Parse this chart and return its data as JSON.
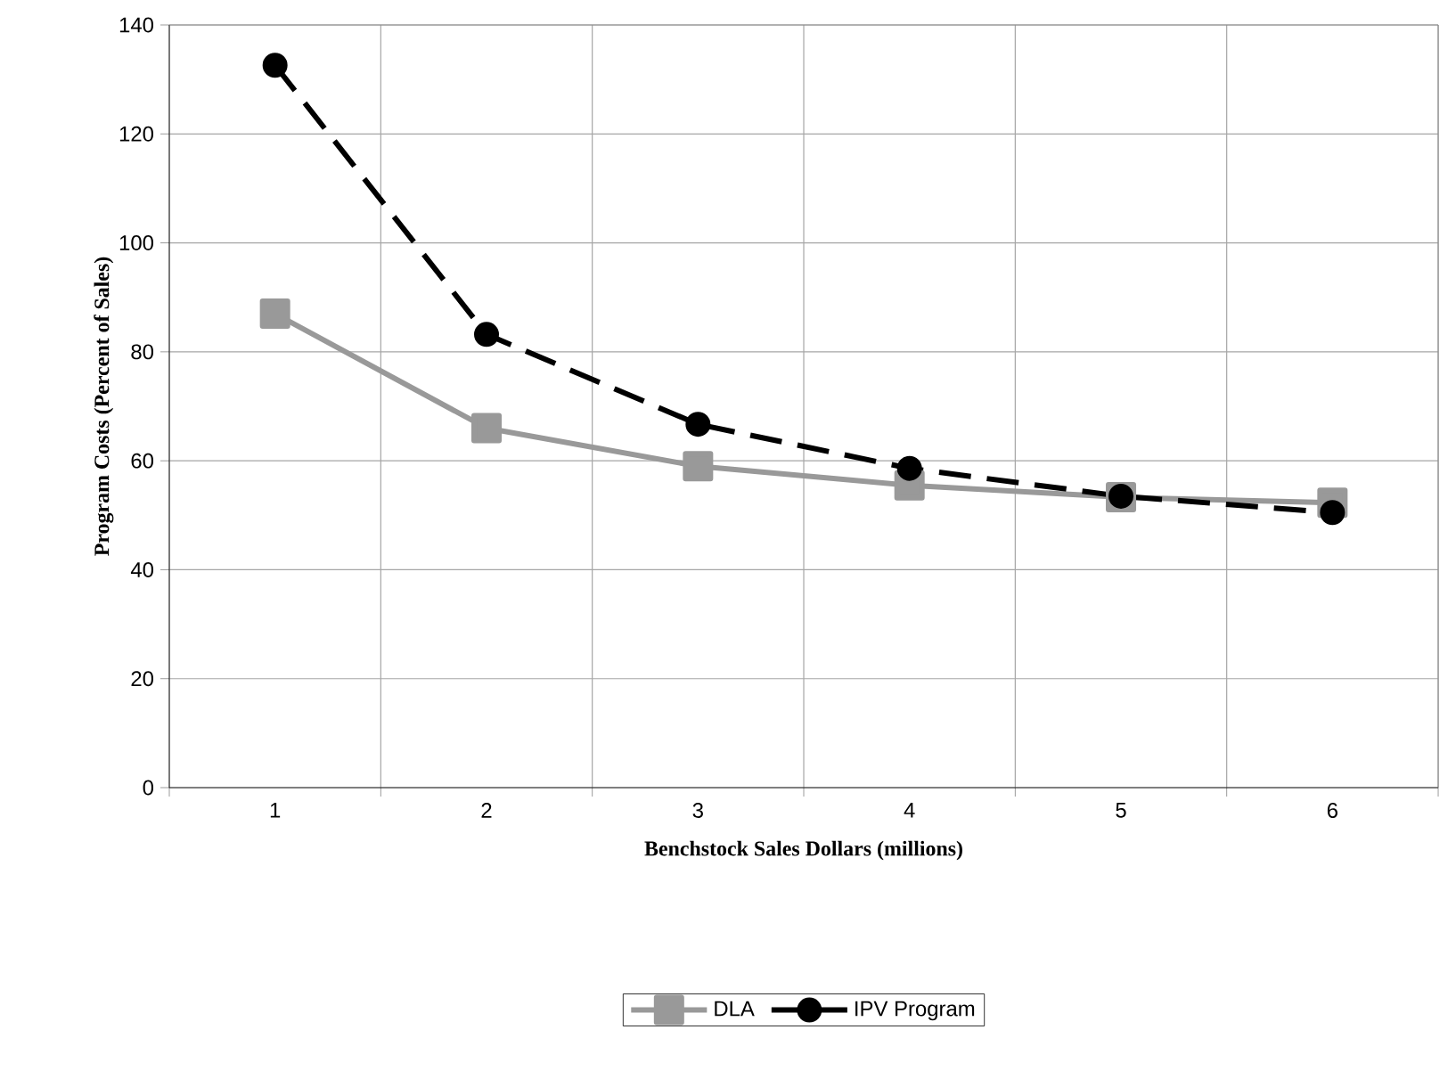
{
  "chart_data": {
    "type": "line",
    "xlabel": "Benchstock Sales Dollars (millions)",
    "ylabel": "Program Costs (Percent of Sales)",
    "categories": [
      "1",
      "2",
      "3",
      "4",
      "5",
      "6"
    ],
    "series": [
      {
        "name": "DLA",
        "color": "#999999",
        "marker": "square",
        "line_style": "solid",
        "values": [
          87,
          66,
          59,
          55.5,
          53.3,
          52.3
        ]
      },
      {
        "name": "IPV Program",
        "color": "#000000",
        "marker": "circle",
        "line_style": "dashed",
        "values": [
          132.6,
          83.2,
          66.7,
          58.6,
          53.5,
          50.5
        ]
      }
    ],
    "ylim": [
      0,
      140
    ],
    "yticks": [
      0,
      20,
      40,
      60,
      80,
      100,
      120,
      140
    ],
    "grid": true,
    "legend": "bottom"
  }
}
